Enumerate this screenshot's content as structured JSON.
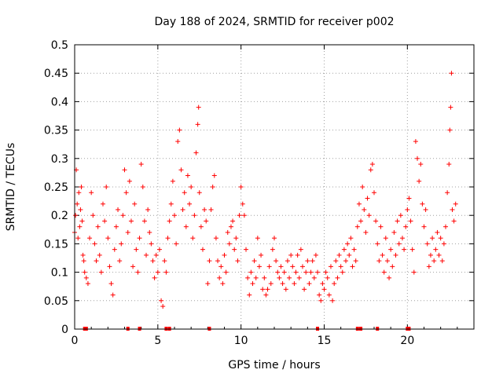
{
  "chart_data": {
    "type": "scatter",
    "title": "Day 188 of 2024, SRMTID for receiver p002",
    "xlabel": "GPS time / hours",
    "ylabel": "SRMTID / TECUs",
    "xlim": [
      0,
      24
    ],
    "ylim": [
      0,
      0.5
    ],
    "grid": true,
    "marker": "+",
    "color": "#ff0000",
    "xticks": [
      0,
      5,
      10,
      15,
      20
    ],
    "xtick_labels": [
      "0",
      "5",
      "10",
      "15",
      "20"
    ],
    "yticks": [
      0,
      0.05,
      0.1,
      0.15,
      0.2,
      0.25,
      0.3,
      0.35,
      0.4,
      0.45,
      0.5
    ],
    "ytick_labels": [
      "0",
      "0.05",
      "0.1",
      "0.15",
      "0.2",
      "0.25",
      "0.3",
      "0.35",
      "0.4",
      "0.45",
      "0.5"
    ],
    "series": [
      {
        "name": "p002",
        "points": [
          [
            0.0,
            0.17
          ],
          [
            0.05,
            0.2
          ],
          [
            0.1,
            0.28
          ],
          [
            0.15,
            0.22
          ],
          [
            0.2,
            0.16
          ],
          [
            0.25,
            0.24
          ],
          [
            0.3,
            0.18
          ],
          [
            0.35,
            0.21
          ],
          [
            0.4,
            0.25
          ],
          [
            0.45,
            0.19
          ],
          [
            0.5,
            0.13
          ],
          [
            0.55,
            0.12
          ],
          [
            0.6,
            0.1
          ],
          [
            0.7,
            0.09
          ],
          [
            0.8,
            0.08
          ],
          [
            0.9,
            0.16
          ],
          [
            1.0,
            0.24
          ],
          [
            1.1,
            0.2
          ],
          [
            1.2,
            0.15
          ],
          [
            1.3,
            0.12
          ],
          [
            1.4,
            0.18
          ],
          [
            1.5,
            0.13
          ],
          [
            1.6,
            0.1
          ],
          [
            1.7,
            0.22
          ],
          [
            1.8,
            0.19
          ],
          [
            1.9,
            0.25
          ],
          [
            2.0,
            0.16
          ],
          [
            2.1,
            0.11
          ],
          [
            2.2,
            0.08
          ],
          [
            2.3,
            0.06
          ],
          [
            2.4,
            0.14
          ],
          [
            2.5,
            0.18
          ],
          [
            2.6,
            0.21
          ],
          [
            2.7,
            0.12
          ],
          [
            2.8,
            0.15
          ],
          [
            2.9,
            0.2
          ],
          [
            3.0,
            0.28
          ],
          [
            3.1,
            0.24
          ],
          [
            3.2,
            0.17
          ],
          [
            3.3,
            0.26
          ],
          [
            3.4,
            0.19
          ],
          [
            3.5,
            0.11
          ],
          [
            3.6,
            0.22
          ],
          [
            3.7,
            0.14
          ],
          [
            3.8,
            0.1
          ],
          [
            3.9,
            0.16
          ],
          [
            4.0,
            0.29
          ],
          [
            4.1,
            0.25
          ],
          [
            4.2,
            0.19
          ],
          [
            4.3,
            0.13
          ],
          [
            4.4,
            0.21
          ],
          [
            4.5,
            0.17
          ],
          [
            4.6,
            0.15
          ],
          [
            4.7,
            0.12
          ],
          [
            4.8,
            0.09
          ],
          [
            4.9,
            0.13
          ],
          [
            5.0,
            0.1
          ],
          [
            5.1,
            0.14
          ],
          [
            5.2,
            0.05
          ],
          [
            5.3,
            0.04
          ],
          [
            5.4,
            0.12
          ],
          [
            5.5,
            0.1
          ],
          [
            5.6,
            0.16
          ],
          [
            5.7,
            0.19
          ],
          [
            5.8,
            0.22
          ],
          [
            5.9,
            0.26
          ],
          [
            6.0,
            0.2
          ],
          [
            6.1,
            0.15
          ],
          [
            6.2,
            0.33
          ],
          [
            6.3,
            0.35
          ],
          [
            6.4,
            0.28
          ],
          [
            6.5,
            0.21
          ],
          [
            6.6,
            0.24
          ],
          [
            6.7,
            0.18
          ],
          [
            6.8,
            0.27
          ],
          [
            6.9,
            0.22
          ],
          [
            7.0,
            0.25
          ],
          [
            7.1,
            0.16
          ],
          [
            7.2,
            0.2
          ],
          [
            7.3,
            0.31
          ],
          [
            7.4,
            0.36
          ],
          [
            7.45,
            0.39
          ],
          [
            7.5,
            0.24
          ],
          [
            7.6,
            0.18
          ],
          [
            7.7,
            0.14
          ],
          [
            7.8,
            0.21
          ],
          [
            7.9,
            0.19
          ],
          [
            8.0,
            0.08
          ],
          [
            8.1,
            0.12
          ],
          [
            8.2,
            0.21
          ],
          [
            8.3,
            0.25
          ],
          [
            8.4,
            0.27
          ],
          [
            8.5,
            0.16
          ],
          [
            8.6,
            0.12
          ],
          [
            8.7,
            0.09
          ],
          [
            8.8,
            0.11
          ],
          [
            8.9,
            0.08
          ],
          [
            9.0,
            0.13
          ],
          [
            9.1,
            0.1
          ],
          [
            9.2,
            0.17
          ],
          [
            9.3,
            0.15
          ],
          [
            9.4,
            0.18
          ],
          [
            9.5,
            0.19
          ],
          [
            9.6,
            0.14
          ],
          [
            9.7,
            0.16
          ],
          [
            9.8,
            0.12
          ],
          [
            9.9,
            0.2
          ],
          [
            10.0,
            0.25
          ],
          [
            10.1,
            0.22
          ],
          [
            10.2,
            0.2
          ],
          [
            10.3,
            0.14
          ],
          [
            10.4,
            0.09
          ],
          [
            10.5,
            0.06
          ],
          [
            10.6,
            0.1
          ],
          [
            10.7,
            0.08
          ],
          [
            10.8,
            0.12
          ],
          [
            10.9,
            0.09
          ],
          [
            11.0,
            0.16
          ],
          [
            11.1,
            0.11
          ],
          [
            11.2,
            0.13
          ],
          [
            11.3,
            0.07
          ],
          [
            11.4,
            0.09
          ],
          [
            11.5,
            0.06
          ],
          [
            11.6,
            0.07
          ],
          [
            11.7,
            0.11
          ],
          [
            11.8,
            0.08
          ],
          [
            11.9,
            0.14
          ],
          [
            12.0,
            0.16
          ],
          [
            12.1,
            0.12
          ],
          [
            12.2,
            0.1
          ],
          [
            12.3,
            0.09
          ],
          [
            12.4,
            0.11
          ],
          [
            12.5,
            0.08
          ],
          [
            12.6,
            0.1
          ],
          [
            12.7,
            0.07
          ],
          [
            12.8,
            0.12
          ],
          [
            12.9,
            0.09
          ],
          [
            13.0,
            0.13
          ],
          [
            13.1,
            0.11
          ],
          [
            13.2,
            0.08
          ],
          [
            13.3,
            0.1
          ],
          [
            13.4,
            0.13
          ],
          [
            13.5,
            0.09
          ],
          [
            13.6,
            0.14
          ],
          [
            13.7,
            0.11
          ],
          [
            13.8,
            0.07
          ],
          [
            13.9,
            0.1
          ],
          [
            14.0,
            0.12
          ],
          [
            14.1,
            0.08
          ],
          [
            14.2,
            0.1
          ],
          [
            14.3,
            0.12
          ],
          [
            14.4,
            0.09
          ],
          [
            14.5,
            0.13
          ],
          [
            14.6,
            0.1
          ],
          [
            14.7,
            0.06
          ],
          [
            14.8,
            0.05
          ],
          [
            14.9,
            0.08
          ],
          [
            15.0,
            0.07
          ],
          [
            15.1,
            0.1
          ],
          [
            15.2,
            0.09
          ],
          [
            15.3,
            0.06
          ],
          [
            15.4,
            0.11
          ],
          [
            15.5,
            0.05
          ],
          [
            15.6,
            0.08
          ],
          [
            15.7,
            0.12
          ],
          [
            15.8,
            0.09
          ],
          [
            15.9,
            0.13
          ],
          [
            16.0,
            0.11
          ],
          [
            16.1,
            0.1
          ],
          [
            16.2,
            0.14
          ],
          [
            16.3,
            0.12
          ],
          [
            16.4,
            0.15
          ],
          [
            16.5,
            0.13
          ],
          [
            16.6,
            0.16
          ],
          [
            16.7,
            0.11
          ],
          [
            16.8,
            0.14
          ],
          [
            16.9,
            0.12
          ],
          [
            17.0,
            0.18
          ],
          [
            17.1,
            0.22
          ],
          [
            17.2,
            0.19
          ],
          [
            17.3,
            0.25
          ],
          [
            17.4,
            0.21
          ],
          [
            17.5,
            0.17
          ],
          [
            17.6,
            0.23
          ],
          [
            17.7,
            0.2
          ],
          [
            17.8,
            0.28
          ],
          [
            17.9,
            0.29
          ],
          [
            18.0,
            0.24
          ],
          [
            18.1,
            0.19
          ],
          [
            18.2,
            0.15
          ],
          [
            18.3,
            0.12
          ],
          [
            18.4,
            0.18
          ],
          [
            18.5,
            0.13
          ],
          [
            18.6,
            0.1
          ],
          [
            18.7,
            0.16
          ],
          [
            18.8,
            0.12
          ],
          [
            18.9,
            0.09
          ],
          [
            19.0,
            0.14
          ],
          [
            19.1,
            0.11
          ],
          [
            19.2,
            0.17
          ],
          [
            19.3,
            0.13
          ],
          [
            19.4,
            0.19
          ],
          [
            19.5,
            0.15
          ],
          [
            19.6,
            0.2
          ],
          [
            19.7,
            0.16
          ],
          [
            19.8,
            0.14
          ],
          [
            19.9,
            0.18
          ],
          [
            20.0,
            0.21
          ],
          [
            20.1,
            0.23
          ],
          [
            20.2,
            0.19
          ],
          [
            20.3,
            0.14
          ],
          [
            20.4,
            0.1
          ],
          [
            20.5,
            0.33
          ],
          [
            20.6,
            0.3
          ],
          [
            20.7,
            0.26
          ],
          [
            20.8,
            0.29
          ],
          [
            20.9,
            0.22
          ],
          [
            21.0,
            0.18
          ],
          [
            21.1,
            0.21
          ],
          [
            21.2,
            0.15
          ],
          [
            21.3,
            0.11
          ],
          [
            21.4,
            0.13
          ],
          [
            21.5,
            0.16
          ],
          [
            21.6,
            0.12
          ],
          [
            21.7,
            0.14
          ],
          [
            21.8,
            0.17
          ],
          [
            21.9,
            0.13
          ],
          [
            22.0,
            0.16
          ],
          [
            22.1,
            0.12
          ],
          [
            22.2,
            0.15
          ],
          [
            22.3,
            0.18
          ],
          [
            22.4,
            0.24
          ],
          [
            22.5,
            0.29
          ],
          [
            22.55,
            0.35
          ],
          [
            22.6,
            0.39
          ],
          [
            22.65,
            0.45
          ],
          [
            22.7,
            0.21
          ],
          [
            22.8,
            0.19
          ],
          [
            22.9,
            0.22
          ]
        ]
      }
    ],
    "missing_data_marks_x": [
      0.6,
      0.7,
      3.2,
      3.9,
      5.5,
      5.7,
      8.1,
      14.6,
      17.0,
      17.2,
      18.2,
      20.0,
      20.1
    ]
  }
}
